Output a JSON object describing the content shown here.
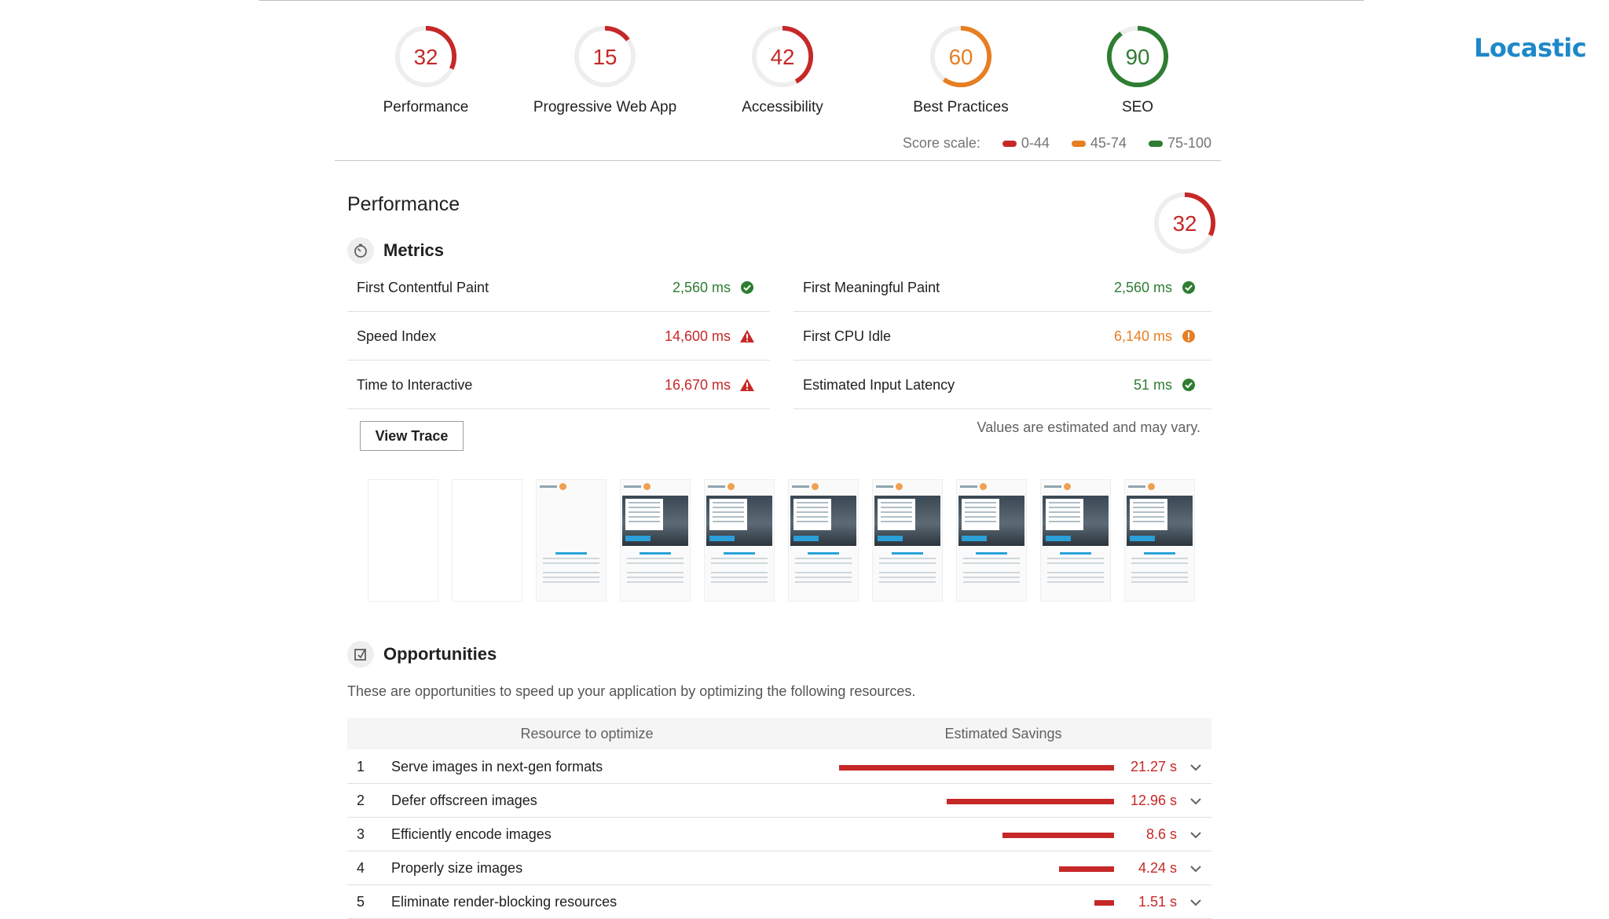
{
  "brand": {
    "name": "Locastic",
    "color": "#1e88c8"
  },
  "colors": {
    "fail": "#c62828",
    "average": "#e67e22",
    "pass": "#2e7d32"
  },
  "scores": [
    {
      "name": "gauge-performance",
      "score": 32,
      "label": "Performance",
      "status": "fail"
    },
    {
      "name": "gauge-pwa",
      "score": 15,
      "label": "Progressive Web App",
      "status": "fail"
    },
    {
      "name": "gauge-accessibility",
      "score": 42,
      "label": "Accessibility",
      "status": "fail"
    },
    {
      "name": "gauge-best-practices",
      "score": 60,
      "label": "Best Practices",
      "status": "average"
    },
    {
      "name": "gauge-seo",
      "score": 90,
      "label": "SEO",
      "status": "pass"
    }
  ],
  "score_scale": {
    "label": "Score scale:",
    "ranges": [
      {
        "label": "0-44",
        "status": "fail"
      },
      {
        "label": "45-74",
        "status": "average"
      },
      {
        "label": "75-100",
        "status": "pass"
      }
    ]
  },
  "performance": {
    "title": "Performance",
    "score": 32,
    "metrics_title": "Metrics",
    "metrics": [
      {
        "name": "First Contentful Paint",
        "value": "2,560 ms",
        "status": "pass"
      },
      {
        "name": "First Meaningful Paint",
        "value": "2,560 ms",
        "status": "pass"
      },
      {
        "name": "Speed Index",
        "value": "14,600 ms",
        "status": "fail"
      },
      {
        "name": "First CPU Idle",
        "value": "6,140 ms",
        "status": "average"
      },
      {
        "name": "Time to Interactive",
        "value": "16,670 ms",
        "status": "fail"
      },
      {
        "name": "Estimated Input Latency",
        "value": "51 ms",
        "status": "pass"
      }
    ],
    "view_trace_label": "View Trace",
    "note": "Values are estimated and may vary.",
    "filmstrip": {
      "blank_frames": 2,
      "page_frames": 8
    }
  },
  "opportunities": {
    "title": "Opportunities",
    "description": "These are opportunities to speed up your application by optimizing the following resources.",
    "col_resource": "Resource to optimize",
    "col_savings": "Estimated Savings",
    "max_savings": 21.27,
    "items": [
      {
        "num": "1",
        "title": "Serve images in next-gen formats",
        "savings": 21.27,
        "savings_label": "21.27 s"
      },
      {
        "num": "2",
        "title": "Defer offscreen images",
        "savings": 12.96,
        "savings_label": "12.96 s"
      },
      {
        "num": "3",
        "title": "Efficiently encode images",
        "savings": 8.6,
        "savings_label": "8.6 s"
      },
      {
        "num": "4",
        "title": "Properly size images",
        "savings": 4.24,
        "savings_label": "4.24 s"
      },
      {
        "num": "5",
        "title": "Eliminate render-blocking resources",
        "savings": 1.51,
        "savings_label": "1.51 s"
      }
    ]
  }
}
